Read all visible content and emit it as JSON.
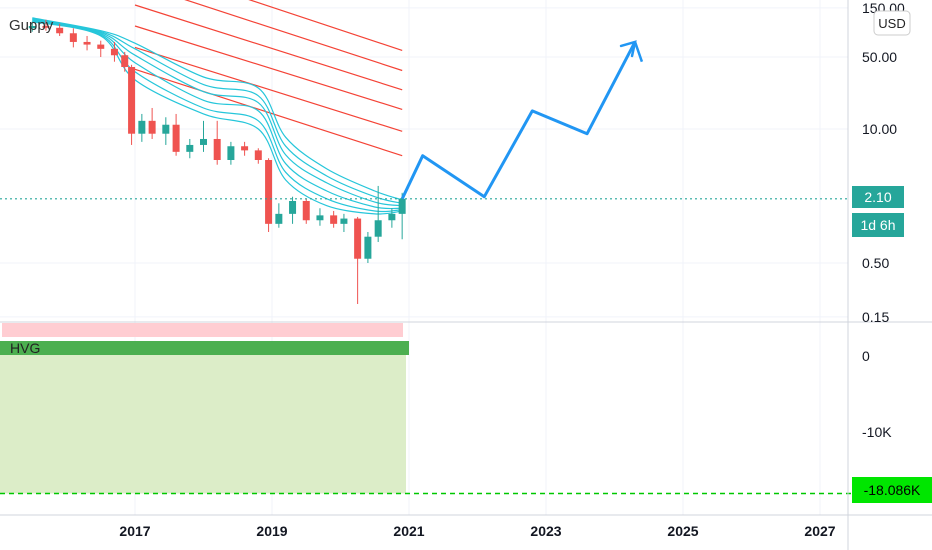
{
  "chart_data": {
    "type": "candlestick",
    "instrument_currency": "USD",
    "main_pane": {
      "indicator_label": "Guppy",
      "y_scale": "log",
      "y_ticks": [
        "150.00",
        "50.00",
        "10.00",
        "2.10",
        "0.50",
        "0.15"
      ],
      "y_tick_values": [
        150,
        50,
        10,
        2.1,
        0.5,
        0.15
      ],
      "last_price_label": "2.10",
      "countdown_label": "1d 6h",
      "candles": [
        {
          "t": 2015.5,
          "o": 95,
          "h": 110,
          "l": 88,
          "c": 100
        },
        {
          "t": 2015.7,
          "o": 100,
          "h": 115,
          "l": 90,
          "c": 96
        },
        {
          "t": 2015.9,
          "o": 96,
          "h": 105,
          "l": 80,
          "c": 85
        },
        {
          "t": 2016.1,
          "o": 85,
          "h": 95,
          "l": 62,
          "c": 70
        },
        {
          "t": 2016.3,
          "o": 70,
          "h": 80,
          "l": 58,
          "c": 66
        },
        {
          "t": 2016.5,
          "o": 66,
          "h": 72,
          "l": 50,
          "c": 60
        },
        {
          "t": 2016.7,
          "o": 60,
          "h": 70,
          "l": 45,
          "c": 52
        },
        {
          "t": 2016.85,
          "o": 52,
          "h": 56,
          "l": 36,
          "c": 40
        },
        {
          "t": 2016.95,
          "o": 40,
          "h": 42,
          "l": 7,
          "c": 9
        },
        {
          "t": 2017.1,
          "o": 9,
          "h": 14,
          "l": 7.5,
          "c": 12
        },
        {
          "t": 2017.25,
          "o": 12,
          "h": 16,
          "l": 8,
          "c": 9
        },
        {
          "t": 2017.45,
          "o": 9,
          "h": 13,
          "l": 7,
          "c": 11
        },
        {
          "t": 2017.6,
          "o": 11,
          "h": 14,
          "l": 5.5,
          "c": 6
        },
        {
          "t": 2017.8,
          "o": 6,
          "h": 8,
          "l": 5.2,
          "c": 7
        },
        {
          "t": 2018.0,
          "o": 7,
          "h": 12,
          "l": 6,
          "c": 8
        },
        {
          "t": 2018.2,
          "o": 8,
          "h": 12,
          "l": 4.5,
          "c": 5
        },
        {
          "t": 2018.4,
          "o": 5,
          "h": 7.5,
          "l": 4.5,
          "c": 6.8
        },
        {
          "t": 2018.6,
          "o": 6.8,
          "h": 7.5,
          "l": 5.5,
          "c": 6.2
        },
        {
          "t": 2018.8,
          "o": 6.2,
          "h": 6.5,
          "l": 4.6,
          "c": 5
        },
        {
          "t": 2018.95,
          "o": 5,
          "h": 5.2,
          "l": 1.0,
          "c": 1.2
        },
        {
          "t": 2019.1,
          "o": 1.2,
          "h": 1.9,
          "l": 1.1,
          "c": 1.5
        },
        {
          "t": 2019.3,
          "o": 1.5,
          "h": 2.2,
          "l": 1.2,
          "c": 2.0
        },
        {
          "t": 2019.5,
          "o": 2.0,
          "h": 2.1,
          "l": 1.2,
          "c": 1.3
        },
        {
          "t": 2019.7,
          "o": 1.3,
          "h": 1.7,
          "l": 1.15,
          "c": 1.45
        },
        {
          "t": 2019.9,
          "o": 1.45,
          "h": 1.6,
          "l": 1.1,
          "c": 1.2
        },
        {
          "t": 2020.05,
          "o": 1.2,
          "h": 1.5,
          "l": 1.0,
          "c": 1.35
        },
        {
          "t": 2020.25,
          "o": 1.35,
          "h": 1.4,
          "l": 0.2,
          "c": 0.55
        },
        {
          "t": 2020.4,
          "o": 0.55,
          "h": 1.0,
          "l": 0.5,
          "c": 0.9
        },
        {
          "t": 2020.55,
          "o": 0.9,
          "h": 2.8,
          "l": 0.8,
          "c": 1.3
        },
        {
          "t": 2020.75,
          "o": 1.3,
          "h": 1.7,
          "l": 1.1,
          "c": 1.5
        },
        {
          "t": 2020.9,
          "o": 1.5,
          "h": 2.4,
          "l": 0.85,
          "c": 2.1
        }
      ],
      "guppy_short_emas": [
        [
          [
            2015.5,
            110
          ],
          [
            2016.5,
            80
          ],
          [
            2017.0,
            30
          ],
          [
            2018.0,
            14
          ],
          [
            2018.8,
            10
          ],
          [
            2019.2,
            3.2
          ],
          [
            2019.8,
            1.8
          ],
          [
            2020.5,
            1.5
          ],
          [
            2020.9,
            1.6
          ]
        ],
        [
          [
            2015.5,
            112
          ],
          [
            2016.5,
            82
          ],
          [
            2017.0,
            36
          ],
          [
            2018.0,
            16
          ],
          [
            2018.8,
            12
          ],
          [
            2019.2,
            3.8
          ],
          [
            2019.8,
            2.1
          ],
          [
            2020.5,
            1.6
          ],
          [
            2020.9,
            1.65
          ]
        ],
        [
          [
            2015.5,
            114
          ],
          [
            2016.5,
            84
          ],
          [
            2017.0,
            44
          ],
          [
            2018.0,
            19
          ],
          [
            2018.8,
            15
          ],
          [
            2019.2,
            4.6
          ],
          [
            2019.8,
            2.5
          ],
          [
            2020.5,
            1.75
          ],
          [
            2020.9,
            1.7
          ]
        ],
        [
          [
            2015.5,
            116
          ],
          [
            2016.5,
            86
          ],
          [
            2017.0,
            52
          ],
          [
            2018.0,
            23
          ],
          [
            2018.8,
            18
          ],
          [
            2019.2,
            5.6
          ],
          [
            2019.8,
            3.0
          ],
          [
            2020.5,
            1.95
          ],
          [
            2020.9,
            1.8
          ]
        ],
        [
          [
            2015.5,
            118
          ],
          [
            2016.5,
            88
          ],
          [
            2017.0,
            60
          ],
          [
            2018.0,
            27
          ],
          [
            2018.8,
            21
          ],
          [
            2019.2,
            6.8
          ],
          [
            2019.8,
            3.5
          ],
          [
            2020.5,
            2.2
          ],
          [
            2020.9,
            1.9
          ]
        ],
        [
          [
            2015.5,
            120
          ],
          [
            2016.5,
            90
          ],
          [
            2017.0,
            68
          ],
          [
            2018.0,
            32
          ],
          [
            2018.8,
            25
          ],
          [
            2019.2,
            8.3
          ],
          [
            2019.8,
            4.1
          ],
          [
            2020.5,
            2.5
          ],
          [
            2020.9,
            2.05
          ]
        ]
      ],
      "guppy_long_emas": [
        [
          [
            2017.0,
            420
          ],
          [
            2020.9,
            58
          ]
        ],
        [
          [
            2017.0,
            260
          ],
          [
            2020.9,
            37
          ]
        ],
        [
          [
            2017.0,
            160
          ],
          [
            2020.9,
            24
          ]
        ],
        [
          [
            2017.0,
            100
          ],
          [
            2020.9,
            15.5
          ]
        ],
        [
          [
            2017.0,
            62
          ],
          [
            2020.9,
            9.5
          ]
        ],
        [
          [
            2017.0,
            38
          ],
          [
            2020.9,
            5.5
          ]
        ]
      ],
      "projection": [
        [
          2020.9,
          2.1
        ],
        [
          2021.2,
          5.5
        ],
        [
          2022.1,
          2.2
        ],
        [
          2022.8,
          15
        ],
        [
          2023.6,
          9
        ],
        [
          2024.3,
          70
        ],
        [
          2024.4,
          45
        ]
      ]
    },
    "sub_pane": {
      "indicator_label": "HVG",
      "y_ticks": [
        "0",
        "-10K"
      ],
      "y_tick_values": [
        0,
        -10000
      ],
      "last_value_label": "-18.086K",
      "last_value": -18086
    },
    "x_axis": {
      "tick_labels": [
        "2017",
        "2019",
        "2021",
        "2023",
        "2025",
        "2027"
      ],
      "tick_values": [
        2017,
        2019,
        2021,
        2023,
        2025,
        2027
      ]
    },
    "colors": {
      "bull": "#26a69a",
      "bear": "#ef5350",
      "guppy_short": "#26c6da",
      "guppy_long": "#f44336",
      "projection": "#2196f3",
      "hvg_positive_band": "#ffcdd2",
      "hvg_negative_band": "#4caf50",
      "hvg_fill": "#dcedc8",
      "last_price_badge": "#26a69a",
      "hvg_badge": "#00e600"
    }
  }
}
